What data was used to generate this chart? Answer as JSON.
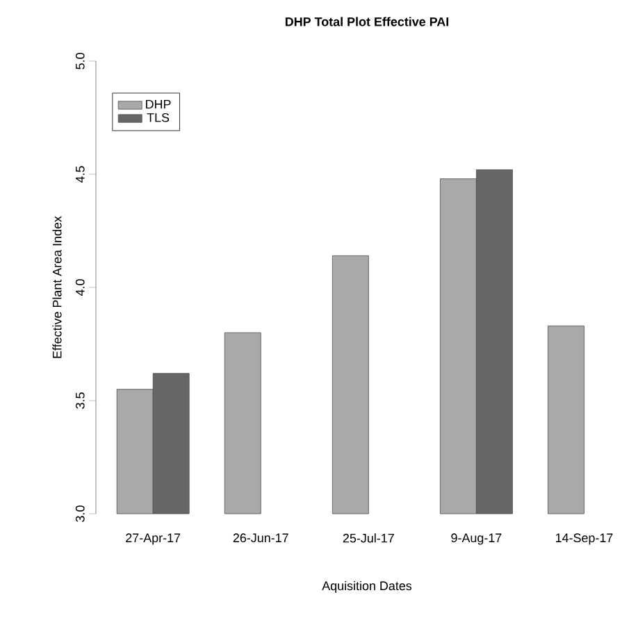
{
  "chart_data": {
    "type": "bar",
    "title": "DHP Total Plot Effective PAI",
    "xlabel": "Aquisition Dates",
    "ylabel": "Effective Plant Area Index",
    "categories": [
      "27-Apr-17",
      "26-Jun-17",
      "25-Jul-17",
      "9-Aug-17",
      "14-Sep-17"
    ],
    "series": [
      {
        "name": "DHP",
        "color": "#a9a9a9",
        "values": [
          3.55,
          3.8,
          4.14,
          4.48,
          3.83
        ]
      },
      {
        "name": "TLS",
        "color": "#666666",
        "values": [
          3.62,
          null,
          null,
          4.52,
          null
        ]
      }
    ],
    "ylim": [
      3,
      5
    ],
    "yticks": [
      {
        "value": 3,
        "label": "3.0"
      },
      {
        "value": 3.5,
        "label": "3.5"
      },
      {
        "value": 4,
        "label": "4.0"
      },
      {
        "value": 4.5,
        "label": "4.5"
      },
      {
        "value": 5,
        "label": "5.0"
      }
    ],
    "legend": "top left"
  }
}
